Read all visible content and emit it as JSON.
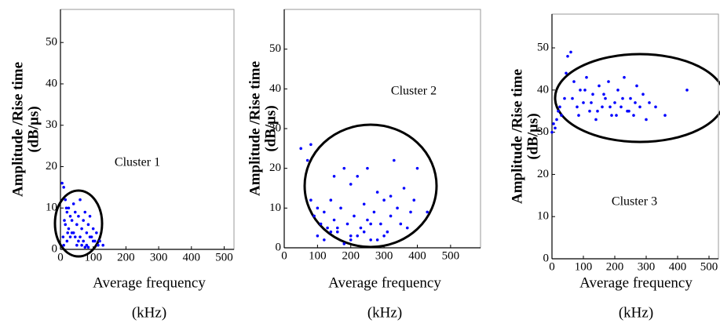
{
  "chart_data": [
    {
      "type": "scatter",
      "annotation": "Cluster 1",
      "xlabel": "Average frequency",
      "xlabel_unit": "(kHz)",
      "ylabel": "Amplitude /Rise time",
      "ylabel_unit": "(dB/μs)",
      "color": "#0000ff",
      "xlim": [
        0,
        530
      ],
      "ylim": [
        0,
        58
      ],
      "xticks": [
        0,
        100,
        200,
        300,
        400,
        500
      ],
      "yticks": [
        0,
        10,
        20,
        30,
        40,
        50
      ],
      "x": [
        5,
        10,
        15,
        20,
        25,
        30,
        35,
        40,
        45,
        50,
        55,
        60,
        65,
        70,
        75,
        80,
        85,
        90,
        95,
        100,
        105,
        110,
        115,
        120,
        10,
        20,
        30,
        40,
        50,
        60,
        70,
        80,
        90,
        100,
        15,
        25,
        35,
        45,
        55,
        65,
        75,
        85,
        8,
        12,
        18,
        22,
        130
      ],
      "y": [
        16,
        15,
        12,
        9,
        10,
        8,
        7,
        11,
        9,
        6,
        8,
        12,
        5,
        7,
        9,
        4,
        6,
        8,
        3,
        5,
        2,
        4,
        1,
        2,
        1,
        2,
        3,
        4,
        1,
        3,
        2,
        1,
        3,
        2,
        6,
        5,
        4,
        3,
        2,
        1,
        0.5,
        0.5,
        3,
        7,
        10,
        4,
        1
      ]
    },
    {
      "type": "scatter",
      "annotation": "Cluster 2",
      "xlabel": "Average frequency",
      "xlabel_unit": "(kHz)",
      "ylabel": "Amplitude /Rise time",
      "ylabel_unit": "(dB/μs)",
      "color": "#0000ff",
      "xlim": [
        0,
        590
      ],
      "ylim": [
        0,
        60
      ],
      "xticks": [
        0,
        100,
        200,
        300,
        400,
        500
      ],
      "yticks": [
        0,
        10,
        20,
        30,
        40,
        50
      ],
      "x": [
        50,
        70,
        80,
        90,
        100,
        110,
        120,
        130,
        140,
        150,
        160,
        170,
        180,
        190,
        200,
        210,
        220,
        230,
        240,
        250,
        260,
        270,
        280,
        290,
        300,
        310,
        320,
        330,
        340,
        350,
        360,
        370,
        380,
        390,
        400,
        430,
        100,
        120,
        140,
        160,
        180,
        200,
        220,
        240,
        260,
        280,
        300,
        80,
        150,
        200,
        250,
        320
      ],
      "y": [
        25,
        22,
        12,
        8,
        10,
        6,
        9,
        5,
        12,
        7,
        4,
        10,
        20,
        6,
        3,
        8,
        18,
        5,
        11,
        7,
        2,
        9,
        14,
        6,
        12,
        4,
        8,
        22,
        10,
        6,
        15,
        5,
        9,
        12,
        20,
        9,
        3,
        2,
        4,
        5,
        1,
        2,
        3,
        4,
        6,
        2,
        3,
        26,
        18,
        16,
        20,
        13
      ]
    },
    {
      "type": "scatter",
      "annotation": "Cluster 3",
      "xlabel": "Average frequency",
      "xlabel_unit": "(kHz)",
      "ylabel": "Amplitude /Rise time",
      "ylabel_unit": "(dB/μs)",
      "color": "#0000ff",
      "xlim": [
        0,
        530
      ],
      "ylim": [
        0,
        58
      ],
      "xticks": [
        0,
        100,
        200,
        300,
        400,
        500
      ],
      "yticks": [
        0,
        10,
        20,
        30,
        40,
        50
      ],
      "x": [
        0,
        5,
        10,
        20,
        30,
        40,
        50,
        60,
        70,
        80,
        90,
        100,
        110,
        120,
        130,
        140,
        150,
        160,
        170,
        180,
        190,
        200,
        210,
        220,
        230,
        240,
        250,
        260,
        270,
        280,
        290,
        300,
        310,
        330,
        360,
        430,
        15,
        25,
        45,
        65,
        85,
        105,
        125,
        145,
        165,
        185,
        205,
        225,
        245,
        265
      ],
      "y": [
        30,
        32,
        31,
        35,
        34,
        38,
        48,
        49,
        42,
        36,
        40,
        37,
        43,
        35,
        39,
        33,
        41,
        36,
        38,
        42,
        34,
        37,
        40,
        36,
        43,
        35,
        38,
        34,
        41,
        36,
        39,
        33,
        37,
        36,
        34,
        40,
        33,
        36,
        44,
        38,
        34,
        40,
        37,
        35,
        39,
        36,
        34,
        38,
        35,
        37
      ]
    }
  ]
}
